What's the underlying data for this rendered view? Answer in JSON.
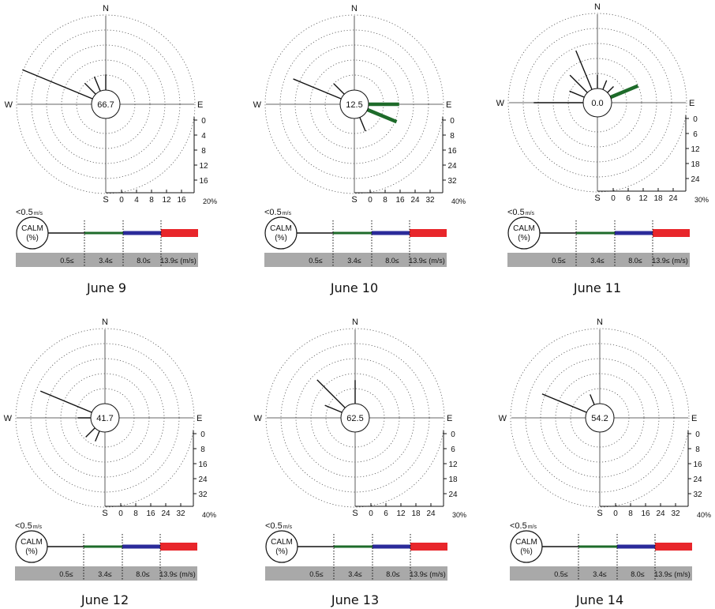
{
  "legend": {
    "calm_threshold": "<0.5",
    "calm_unit": "m/s",
    "calm_label": "CALM",
    "calm_pct": "(%)",
    "bins": [
      "0.5≤",
      "3.4≤",
      "8.0≤",
      "13.9≤ (m/s)"
    ],
    "colors": [
      "#111111",
      "#1e6b2a",
      "#2b2b9a",
      "#e8262b"
    ]
  },
  "compass": {
    "n": "N",
    "e": "E",
    "s": "S",
    "w": "W"
  },
  "chart_data": [
    {
      "type": "wind-rose",
      "title": "June 9",
      "calm": "66.7",
      "scale_ticks": [
        "0",
        "4",
        "8",
        "12",
        "16"
      ],
      "scale_max_label": "20%",
      "scale_max": 20,
      "petals": [
        {
          "direction": "WNW",
          "pct": 20.5,
          "speed_class": 0
        },
        {
          "direction": "NW",
          "pct": 4.2,
          "speed_class": 0
        },
        {
          "direction": "NNW",
          "pct": 4.2,
          "speed_class": 0
        },
        {
          "direction": "N",
          "pct": 4.2,
          "speed_class": 0
        }
      ]
    },
    {
      "type": "wind-rose",
      "title": "June 10",
      "calm": "12.5",
      "scale_ticks": [
        "0",
        "8",
        "16",
        "24",
        "32"
      ],
      "scale_max_label": "40%",
      "scale_max": 40,
      "petals": [
        {
          "direction": "WNW",
          "pct": 28,
          "speed_class": 0
        },
        {
          "direction": "NW",
          "pct": 8,
          "speed_class": 0
        },
        {
          "direction": "E",
          "pct": 16.5,
          "speed_class": 1
        },
        {
          "direction": "ESE",
          "pct": 17,
          "speed_class": 1
        },
        {
          "direction": "SSE",
          "pct": 8,
          "speed_class": 0
        }
      ]
    },
    {
      "type": "wind-rose",
      "title": "June 11",
      "calm": "0.0",
      "scale_ticks": [
        "0",
        "6",
        "12",
        "18",
        "24"
      ],
      "scale_max_label": "30%",
      "scale_max": 30,
      "petals": [
        {
          "direction": "W",
          "pct": 20,
          "speed_class": 0
        },
        {
          "direction": "WNW",
          "pct": 6.5,
          "speed_class": 0
        },
        {
          "direction": "NW",
          "pct": 10,
          "speed_class": 0
        },
        {
          "direction": "NNW",
          "pct": 17,
          "speed_class": 0
        },
        {
          "direction": "N",
          "pct": 5.5,
          "speed_class": 0
        },
        {
          "direction": "NNE",
          "pct": 4,
          "speed_class": 0
        },
        {
          "direction": "NE",
          "pct": 3.5,
          "speed_class": 0
        },
        {
          "direction": "ENE",
          "pct": 12,
          "speed_class": 1
        }
      ]
    },
    {
      "type": "wind-rose",
      "title": "June 12",
      "calm": "41.7",
      "scale_ticks": [
        "0",
        "8",
        "16",
        "24",
        "32"
      ],
      "scale_max_label": "40%",
      "scale_max": 40,
      "petals": [
        {
          "direction": "WNW",
          "pct": 30,
          "speed_class": 0
        },
        {
          "direction": "W",
          "pct": 7,
          "speed_class": 0
        },
        {
          "direction": "SW",
          "pct": 7,
          "speed_class": 0
        },
        {
          "direction": "SSW",
          "pct": 6,
          "speed_class": 0
        }
      ]
    },
    {
      "type": "wind-rose",
      "title": "June 13",
      "calm": "62.5",
      "scale_ticks": [
        "0",
        "6",
        "12",
        "18",
        "24"
      ],
      "scale_max_label": "30%",
      "scale_max": 30,
      "petals": [
        {
          "direction": "NW",
          "pct": 16,
          "speed_class": 0
        },
        {
          "direction": "WNW",
          "pct": 7.5,
          "speed_class": 0
        },
        {
          "direction": "N",
          "pct": 9.5,
          "speed_class": 0
        }
      ]
    },
    {
      "type": "wind-rose",
      "title": "June 14",
      "calm": "54.2",
      "scale_ticks": [
        "0",
        "8",
        "16",
        "24",
        "32"
      ],
      "scale_max_label": "40%",
      "scale_max": 40,
      "petals": [
        {
          "direction": "WNW",
          "pct": 26,
          "speed_class": 0
        },
        {
          "direction": "NNW",
          "pct": 6,
          "speed_class": 0
        }
      ]
    }
  ]
}
